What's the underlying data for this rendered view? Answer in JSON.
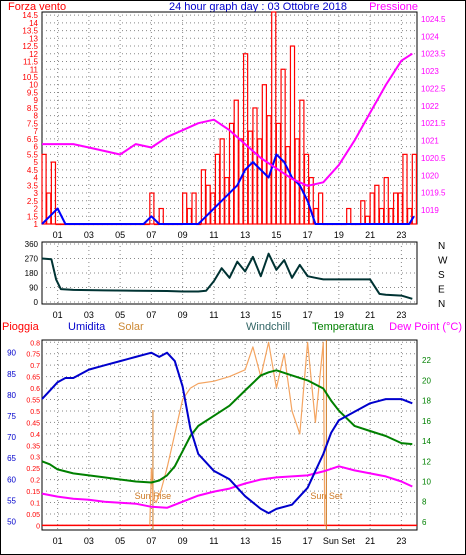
{
  "header": {
    "left": "Forza vento",
    "center": "24 hour graph day : 03 Ottobre 2018",
    "right": "Pressione"
  },
  "colors": {
    "wind": "#ff0000",
    "wind_avg": "#0000ff",
    "pressure": "#ff00ff",
    "direction": "#003333",
    "rain": "#ff0000",
    "humidity": "#0000cc",
    "solar": "#f4a460",
    "windchill": "#336666",
    "temperature": "#008000",
    "dewpoint": "#ff00ff",
    "grid": "#888888",
    "frame": "#000000",
    "sun_marker": "#cc7722"
  },
  "x_ticks": [
    "01",
    "03",
    "05",
    "07",
    "09",
    "11",
    "13",
    "15",
    "17",
    "19",
    "21",
    "23"
  ],
  "x_ticks_bottom": [
    "01",
    "03",
    "05",
    "07",
    "09",
    "11",
    "13",
    "15",
    "17",
    "Sun Set",
    "21",
    "23"
  ],
  "chart_data": [
    {
      "type": "bar",
      "panel": "wind",
      "x_range": [
        0,
        24
      ],
      "y_left": {
        "ticks": [
          "1",
          "1.5",
          "2",
          "2.5",
          "3",
          "3.5",
          "4",
          "4.5",
          "5",
          "5.5",
          "6",
          "6.5",
          "7",
          "7.5",
          "8",
          "8.5",
          "9",
          "9.5",
          "10",
          "10.5",
          "11",
          "11.5",
          "12",
          "12.5",
          "13",
          "13.5",
          "14",
          "14.5"
        ],
        "ylim": [
          1,
          14.7
        ]
      },
      "y_right": {
        "ticks": [
          "1019",
          "1019.5",
          "1020",
          "1020.5",
          "1021",
          "1021.5",
          "1022",
          "1022.5",
          "1023",
          "1023.5",
          "1024",
          "1024.5"
        ],
        "ylim": [
          1018.6,
          1024.7
        ]
      },
      "series": [
        {
          "name": "Forza vento",
          "axis": "left",
          "x": [
            0.0,
            0.3,
            0.6,
            0.9,
            1.2,
            1.5,
            1.8,
            2.1,
            2.4,
            2.7,
            3.0,
            3.3,
            3.6,
            3.9,
            4.2,
            4.5,
            4.8,
            5.1,
            5.4,
            5.7,
            6.0,
            6.3,
            6.6,
            6.9,
            7.2,
            7.5,
            7.8,
            8.1,
            8.4,
            8.7,
            9.0,
            9.3,
            9.6,
            9.9,
            10.2,
            10.5,
            10.8,
            11.1,
            11.4,
            11.7,
            12.0,
            12.3,
            12.6,
            12.9,
            13.2,
            13.5,
            13.8,
            14.1,
            14.4,
            14.7,
            15.0,
            15.3,
            15.6,
            15.9,
            16.2,
            16.5,
            16.8,
            17.1,
            17.4,
            17.7,
            18.0,
            18.3,
            18.6,
            18.9,
            19.2,
            19.5,
            19.8,
            20.1,
            20.4,
            20.7,
            21.0,
            21.3,
            21.6,
            21.9,
            22.2,
            22.5,
            22.8,
            23.1,
            23.4,
            23.7
          ],
          "values": [
            5.5,
            3.0,
            5.0,
            1.0,
            1.0,
            1.0,
            1.0,
            1.0,
            1.0,
            1.0,
            1.0,
            1.0,
            1.0,
            1.0,
            1.0,
            1.0,
            1.0,
            1.0,
            1.0,
            1.0,
            1.0,
            1.0,
            1.0,
            3.0,
            1.0,
            2.0,
            1.0,
            1.0,
            1.0,
            1.0,
            3.0,
            2.0,
            3.0,
            1.0,
            4.5,
            3.5,
            3.0,
            5.5,
            6.5,
            4.0,
            7.5,
            9.0,
            6.5,
            12.0,
            7.0,
            8.5,
            6.5,
            10.0,
            8.0,
            14.7,
            7.5,
            11.0,
            6.0,
            12.5,
            6.5,
            9.0,
            5.5,
            4.0,
            2.0,
            3.0,
            1.0,
            1.0,
            1.0,
            1.0,
            1.0,
            2.0,
            1.0,
            1.0,
            2.5,
            1.5,
            3.0,
            3.5,
            2.0,
            4.0,
            2.0,
            3.0,
            3.0,
            5.5,
            2.0,
            5.5
          ]
        },
        {
          "name": "Wind average",
          "axis": "left",
          "x": [
            0.0,
            0.5,
            1.0,
            1.5,
            2.0,
            2.5,
            3.0,
            3.5,
            4.0,
            4.5,
            5.0,
            5.5,
            6.0,
            6.5,
            7.0,
            7.5,
            8.0,
            8.5,
            9.0,
            9.5,
            10.0,
            10.5,
            11.0,
            11.5,
            12.0,
            12.5,
            13.0,
            13.5,
            14.0,
            14.5,
            15.0,
            15.5,
            16.0,
            16.5,
            17.0,
            17.5,
            18.0,
            18.5,
            19.0,
            19.5,
            20.0,
            20.5,
            21.0,
            21.5,
            22.0,
            22.5,
            23.0,
            23.5,
            23.8
          ],
          "values": [
            1.0,
            1.5,
            2.0,
            1.0,
            1.0,
            1.0,
            1.0,
            1.0,
            1.0,
            1.0,
            1.0,
            1.0,
            1.0,
            1.0,
            1.5,
            1.0,
            1.0,
            1.0,
            1.0,
            1.0,
            1.0,
            1.5,
            2.0,
            2.5,
            3.0,
            3.5,
            4.5,
            5.0,
            4.5,
            4.0,
            5.5,
            5.0,
            4.0,
            3.5,
            2.5,
            1.0,
            1.0,
            1.0,
            1.0,
            1.0,
            1.0,
            1.0,
            1.0,
            1.0,
            1.0,
            1.0,
            1.0,
            1.0,
            1.5
          ]
        },
        {
          "name": "Pressione",
          "axis": "right",
          "x": [
            0.0,
            1.0,
            2.0,
            3.0,
            4.0,
            5.0,
            6.0,
            7.0,
            8.0,
            9.0,
            10.0,
            11.0,
            12.0,
            13.0,
            14.0,
            15.0,
            16.0,
            17.0,
            18.0,
            19.0,
            20.0,
            21.0,
            22.0,
            23.0,
            23.7
          ],
          "values": [
            1020.9,
            1020.9,
            1020.9,
            1020.8,
            1020.7,
            1020.6,
            1020.9,
            1020.8,
            1021.1,
            1021.3,
            1021.5,
            1021.6,
            1021.3,
            1020.9,
            1020.5,
            1020.2,
            1019.9,
            1019.7,
            1019.8,
            1020.3,
            1021.0,
            1021.8,
            1022.6,
            1023.3,
            1023.5
          ]
        }
      ]
    },
    {
      "type": "line",
      "panel": "wind-direction",
      "x_range": [
        0,
        24
      ],
      "y_left": {
        "ticks": [
          "0",
          "90",
          "180",
          "270",
          "360"
        ],
        "ylim": [
          0,
          360
        ]
      },
      "y_right_labels": [
        "N",
        "W",
        "S",
        "E",
        "N"
      ],
      "series": [
        {
          "name": "Direction",
          "x": [
            0.0,
            0.6,
            0.9,
            1.2,
            2.0,
            4.0,
            6.0,
            8.0,
            9.0,
            10.0,
            10.5,
            11.0,
            11.5,
            12.0,
            12.5,
            13.0,
            13.5,
            14.0,
            14.5,
            15.0,
            15.5,
            16.0,
            16.5,
            17.0,
            17.5,
            18.0,
            19.0,
            20.0,
            21.0,
            21.6,
            22.0,
            23.0,
            23.7
          ],
          "values": [
            270,
            265,
            140,
            80,
            75,
            72,
            70,
            68,
            65,
            65,
            70,
            130,
            210,
            150,
            250,
            190,
            280,
            160,
            300,
            200,
            260,
            150,
            230,
            160,
            150,
            140,
            140,
            140,
            140,
            50,
            45,
            40,
            20
          ]
        }
      ]
    },
    {
      "type": "line",
      "panel": "weather",
      "x_range": [
        0,
        24
      ],
      "labels": {
        "rain": "Pioggia",
        "humidity": "Umidita",
        "solar": "Solar",
        "windchill": "Windchill",
        "temperature": "Temperatura",
        "dewpoint": "Dew Point (°C)",
        "sunrise": "Sun Rise",
        "sunset": "Sun Set"
      },
      "y_humidity": {
        "ticks": [
          "50",
          "55",
          "60",
          "65",
          "70",
          "75",
          "80",
          "85",
          "90"
        ],
        "ylim": [
          48,
          93
        ]
      },
      "y_rain": {
        "ticks": [
          "0",
          "0.05",
          "0.1",
          "0.15",
          "0.2",
          "0.25",
          "0.3",
          "0.35",
          "0.4",
          "0.45",
          "0.5",
          "0.55",
          "0.6",
          "0.65",
          "0.7",
          "0.75",
          "0.8"
        ],
        "ylim": [
          -0.02,
          0.81
        ]
      },
      "y_temperature": {
        "ticks": [
          "6",
          "8",
          "10",
          "12",
          "14",
          "16",
          "18",
          "20",
          "22"
        ],
        "ylim": [
          5.2,
          24
        ]
      },
      "sunrise_x": 7.1,
      "sunset_x": 18.2,
      "series": [
        {
          "name": "Umidita",
          "axis": "humidity",
          "x": [
            0.0,
            0.5,
            1.0,
            1.5,
            2.0,
            3.0,
            4.0,
            5.0,
            6.0,
            7.0,
            7.5,
            8.0,
            8.5,
            9.0,
            9.5,
            10.0,
            10.5,
            11.0,
            12.0,
            13.0,
            14.0,
            14.5,
            15.0,
            16.0,
            17.0,
            17.5,
            18.0,
            18.5,
            19.0,
            20.0,
            21.0,
            22.0,
            23.0,
            23.7
          ],
          "values": [
            79,
            81,
            83,
            84,
            84,
            86,
            87,
            88,
            89,
            90,
            89,
            90,
            88,
            82,
            72,
            66,
            64,
            62,
            60,
            56,
            53,
            52,
            53,
            54,
            58,
            62,
            66,
            71,
            74,
            76,
            78,
            79,
            79,
            78
          ]
        },
        {
          "name": "Solar",
          "axis": "rain",
          "x": [
            6.9,
            7.0,
            7.1,
            7.3,
            7.6,
            8.0,
            8.5,
            9.0,
            9.5,
            10.0,
            11.0,
            12.0,
            13.0,
            13.5,
            14.0,
            14.5,
            15.0,
            15.5,
            16.0,
            16.5,
            17.0,
            17.5,
            18.0,
            18.1
          ],
          "values": [
            0.0,
            0.25,
            0.12,
            0.1,
            0.15,
            0.25,
            0.4,
            0.55,
            0.6,
            0.62,
            0.63,
            0.65,
            0.68,
            0.78,
            0.65,
            0.8,
            0.6,
            0.75,
            0.5,
            0.4,
            0.8,
            0.45,
            0.8,
            0.0
          ]
        },
        {
          "name": "Temperatura",
          "axis": "temperature",
          "x": [
            0.0,
            0.5,
            1.0,
            2.0,
            3.0,
            4.0,
            5.0,
            6.0,
            7.0,
            7.5,
            8.0,
            8.5,
            9.0,
            9.5,
            10.0,
            11.0,
            12.0,
            13.0,
            14.0,
            14.5,
            15.0,
            16.0,
            17.0,
            18.0,
            18.5,
            19.0,
            20.0,
            21.0,
            22.0,
            23.0,
            23.7
          ],
          "values": [
            12.0,
            11.7,
            11.2,
            10.8,
            10.6,
            10.4,
            10.2,
            10.0,
            9.9,
            10.1,
            10.6,
            11.5,
            13.0,
            14.5,
            15.5,
            16.5,
            17.5,
            19.0,
            20.5,
            20.8,
            21.0,
            20.5,
            20.0,
            19.2,
            18.0,
            17.0,
            15.5,
            15.0,
            14.5,
            13.8,
            13.7
          ]
        },
        {
          "name": "Dew Point (°C)",
          "axis": "temperature",
          "x": [
            0.0,
            1.0,
            2.0,
            3.0,
            4.0,
            5.0,
            6.0,
            7.0,
            8.0,
            9.0,
            10.0,
            11.0,
            12.0,
            13.0,
            14.0,
            15.0,
            16.0,
            17.0,
            18.0,
            19.0,
            20.0,
            21.0,
            22.0,
            23.0,
            23.7
          ],
          "values": [
            8.8,
            8.5,
            8.3,
            8.2,
            8.0,
            7.9,
            7.8,
            7.5,
            7.4,
            8.0,
            8.6,
            9.0,
            9.3,
            9.8,
            10.2,
            10.4,
            10.5,
            10.6,
            11.0,
            11.5,
            11.1,
            10.8,
            10.5,
            10.0,
            9.5
          ]
        }
      ]
    }
  ]
}
